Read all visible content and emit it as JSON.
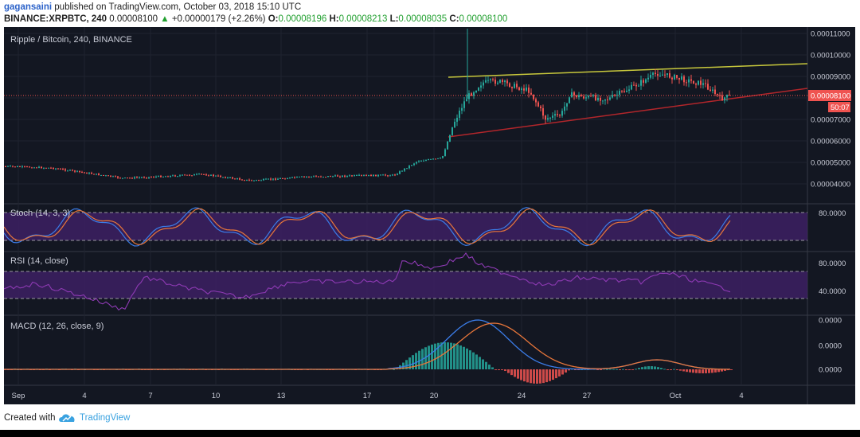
{
  "header": {
    "author": "gagansaini",
    "published": "published on TradingView.com, October 03, 2018 15:10 UTC",
    "symbol": "BINANCE:XRPBTC, 240",
    "last": "0.00008100",
    "change_arrow": "▲",
    "change": "+0.00000179 (+2.26%)",
    "o_label": "O:",
    "o_value": "0.00008196",
    "h_label": "H:",
    "h_value": "0.00008213",
    "l_label": "L:",
    "l_value": "0.00008035",
    "c_label": "C:",
    "c_value": "0.00008100"
  },
  "panes": {
    "main_title": "Ripple / Bitcoin, 240, BINANCE",
    "stoch_title": "Stoch (14, 3, 3)",
    "rsi_title": "RSI (14, close)",
    "macd_title": "MACD (12, 26, close, 9)"
  },
  "price_axis": {
    "ticks": [
      "0.00011000",
      "0.00010000",
      "0.00009000",
      "0.00008000",
      "0.00007000",
      "0.00006000",
      "0.00005000",
      "0.00004000"
    ],
    "current_price": "0.00008100",
    "countdown": "50:07"
  },
  "stoch_axis": {
    "ticks": [
      "80.0000"
    ]
  },
  "rsi_axis": {
    "ticks": [
      "80.0000",
      "40.0000"
    ]
  },
  "macd_axis": {
    "ticks": [
      "0.0000",
      "0.0000",
      "0.0000"
    ]
  },
  "time_axis": {
    "ticks": [
      "Sep",
      "4",
      "7",
      "10",
      "13",
      "17",
      "20",
      "24",
      "27",
      "Oct",
      "4"
    ]
  },
  "footer": {
    "created_with": "Created with",
    "brand": "TradingView"
  },
  "colors": {
    "background": "#131722",
    "up": "#26a69a",
    "down": "#ef5350",
    "upper_trendline": "#c8c83c",
    "lower_trendline": "#b2262b",
    "stoch_k": "#3b7de9",
    "stoch_d": "#e8763a",
    "band_fill": "#3d2063",
    "rsi_line": "#8e3ab4",
    "macd_line": "#3b7de9",
    "signal_line": "#e8763a"
  }
}
